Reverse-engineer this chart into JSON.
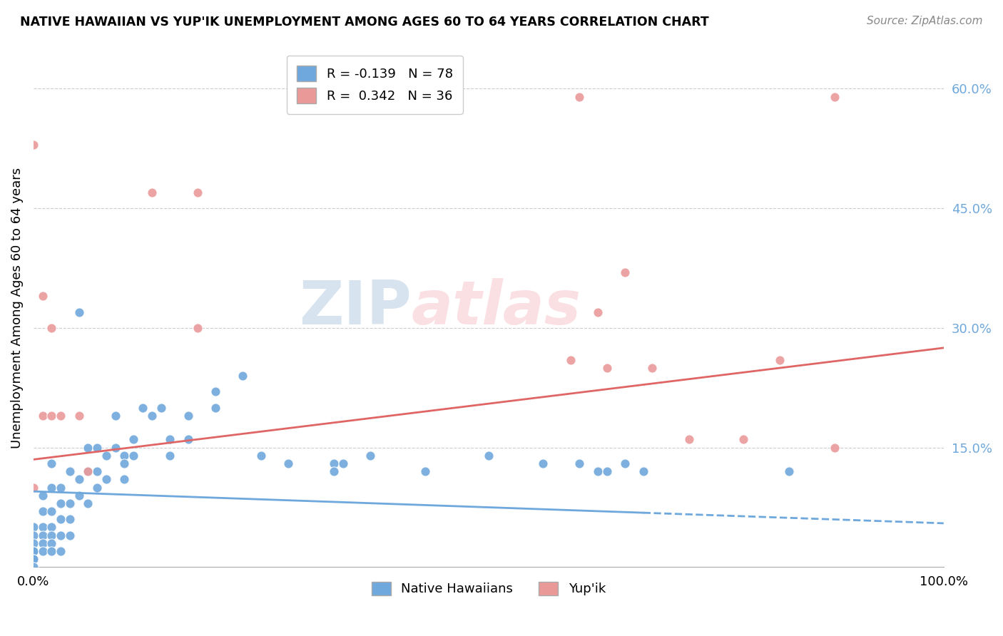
{
  "title": "NATIVE HAWAIIAN VS YUP'IK UNEMPLOYMENT AMONG AGES 60 TO 64 YEARS CORRELATION CHART",
  "source": "Source: ZipAtlas.com",
  "ylabel": "Unemployment Among Ages 60 to 64 years",
  "xlim": [
    0.0,
    1.0
  ],
  "ylim": [
    0.0,
    0.65
  ],
  "ytick_vals_right": [
    0.15,
    0.3,
    0.45,
    0.6
  ],
  "ytick_labels_right": [
    "15.0%",
    "30.0%",
    "45.0%",
    "60.0%"
  ],
  "legend_r1": "R = -0.139",
  "legend_n1": "N = 78",
  "legend_r2": "R =  0.342",
  "legend_n2": "N = 36",
  "color_blue": "#6fa8dc",
  "color_pink": "#ea9999",
  "color_blue_line": "#6fa8dc",
  "color_pink_line": "#e06666",
  "watermark_zip": "ZIP",
  "watermark_atlas": "atlas",
  "blue_line_solid_end": 0.67,
  "blue_line_y_start": 0.095,
  "blue_line_y_end": 0.055,
  "pink_line_y_start": 0.135,
  "pink_line_y_end": 0.275,
  "native_hawaiian_x": [
    0.0,
    0.0,
    0.0,
    0.0,
    0.0,
    0.0,
    0.0,
    0.0,
    0.01,
    0.01,
    0.01,
    0.01,
    0.01,
    0.01,
    0.02,
    0.02,
    0.02,
    0.02,
    0.02,
    0.02,
    0.02,
    0.03,
    0.03,
    0.03,
    0.03,
    0.03,
    0.04,
    0.04,
    0.04,
    0.04,
    0.05,
    0.05,
    0.05,
    0.06,
    0.06,
    0.06,
    0.07,
    0.07,
    0.07,
    0.08,
    0.08,
    0.09,
    0.09,
    0.1,
    0.1,
    0.1,
    0.11,
    0.11,
    0.12,
    0.13,
    0.14,
    0.15,
    0.15,
    0.17,
    0.17,
    0.2,
    0.2,
    0.23,
    0.25,
    0.28,
    0.33,
    0.33,
    0.34,
    0.37,
    0.43,
    0.5,
    0.56,
    0.6,
    0.62,
    0.63,
    0.65,
    0.67,
    0.83
  ],
  "native_hawaiian_y": [
    0.05,
    0.04,
    0.03,
    0.02,
    0.02,
    0.01,
    0.01,
    0.0,
    0.09,
    0.07,
    0.05,
    0.04,
    0.03,
    0.02,
    0.13,
    0.1,
    0.07,
    0.05,
    0.04,
    0.03,
    0.02,
    0.1,
    0.08,
    0.06,
    0.04,
    0.02,
    0.12,
    0.08,
    0.06,
    0.04,
    0.32,
    0.11,
    0.09,
    0.15,
    0.12,
    0.08,
    0.15,
    0.12,
    0.1,
    0.14,
    0.11,
    0.19,
    0.15,
    0.14,
    0.13,
    0.11,
    0.16,
    0.14,
    0.2,
    0.19,
    0.2,
    0.16,
    0.14,
    0.19,
    0.16,
    0.22,
    0.2,
    0.24,
    0.14,
    0.13,
    0.13,
    0.12,
    0.13,
    0.14,
    0.12,
    0.14,
    0.13,
    0.13,
    0.12,
    0.12,
    0.13,
    0.12,
    0.12
  ],
  "yupik_x": [
    0.0,
    0.0,
    0.01,
    0.01,
    0.02,
    0.02,
    0.03,
    0.05,
    0.06,
    0.13,
    0.18,
    0.18,
    0.59,
    0.6,
    0.62,
    0.63,
    0.65,
    0.68,
    0.72,
    0.78,
    0.82,
    0.88,
    0.88
  ],
  "yupik_y": [
    0.53,
    0.1,
    0.34,
    0.19,
    0.3,
    0.19,
    0.19,
    0.19,
    0.12,
    0.47,
    0.47,
    0.3,
    0.26,
    0.59,
    0.32,
    0.25,
    0.37,
    0.25,
    0.16,
    0.16,
    0.26,
    0.59,
    0.15
  ]
}
